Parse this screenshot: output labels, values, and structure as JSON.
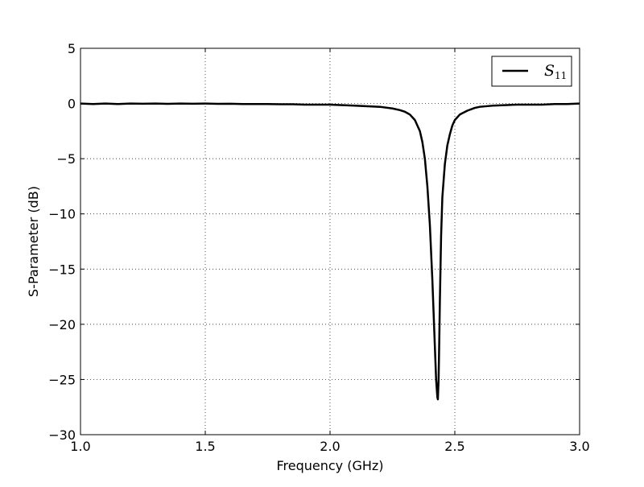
{
  "chart_data": {
    "type": "line",
    "title": "",
    "xlabel": "Frequency (GHz)",
    "ylabel": "S-Parameter (dB)",
    "xlim": [
      1.0,
      3.0
    ],
    "ylim": [
      -30,
      5
    ],
    "xticks": [
      1.0,
      1.5,
      2.0,
      2.5,
      3.0
    ],
    "yticks": [
      5,
      0,
      -5,
      -10,
      -15,
      -20,
      -25,
      -30
    ],
    "xtick_labels": [
      "1.0",
      "1.5",
      "2.0",
      "2.5",
      "3.0"
    ],
    "ytick_labels": [
      "5",
      "0",
      "−5",
      "−10",
      "−15",
      "−20",
      "−25",
      "−30"
    ],
    "grid": true,
    "legend_position": "top-right",
    "series": [
      {
        "name": "S11",
        "name_main": "S",
        "name_sub": "11",
        "color": "#000000",
        "x": [
          1.0,
          1.05,
          1.1,
          1.15,
          1.2,
          1.25,
          1.3,
          1.35,
          1.4,
          1.45,
          1.5,
          1.55,
          1.6,
          1.65,
          1.7,
          1.75,
          1.8,
          1.85,
          1.9,
          1.95,
          2.0,
          2.05,
          2.1,
          2.15,
          2.2,
          2.25,
          2.28,
          2.3,
          2.32,
          2.34,
          2.36,
          2.37,
          2.38,
          2.39,
          2.4,
          2.41,
          2.42,
          2.425,
          2.43,
          2.432,
          2.435,
          2.438,
          2.44,
          2.445,
          2.45,
          2.46,
          2.47,
          2.48,
          2.49,
          2.5,
          2.52,
          2.55,
          2.58,
          2.6,
          2.65,
          2.7,
          2.75,
          2.8,
          2.85,
          2.9,
          2.95,
          3.0
        ],
        "y": [
          0.0,
          -0.05,
          0.0,
          -0.05,
          0.0,
          -0.02,
          0.0,
          -0.03,
          0.0,
          -0.02,
          0.0,
          -0.03,
          -0.02,
          -0.05,
          -0.05,
          -0.05,
          -0.07,
          -0.07,
          -0.1,
          -0.1,
          -0.1,
          -0.15,
          -0.2,
          -0.25,
          -0.3,
          -0.45,
          -0.6,
          -0.75,
          -1.0,
          -1.5,
          -2.5,
          -3.5,
          -5.0,
          -7.5,
          -11.0,
          -16.0,
          -22.0,
          -25.0,
          -26.6,
          -26.8,
          -25.0,
          -21.0,
          -18.0,
          -12.0,
          -8.5,
          -5.5,
          -3.8,
          -2.8,
          -2.0,
          -1.5,
          -1.0,
          -0.65,
          -0.4,
          -0.3,
          -0.2,
          -0.15,
          -0.1,
          -0.1,
          -0.1,
          -0.05,
          -0.05,
          0.0
        ]
      }
    ]
  }
}
